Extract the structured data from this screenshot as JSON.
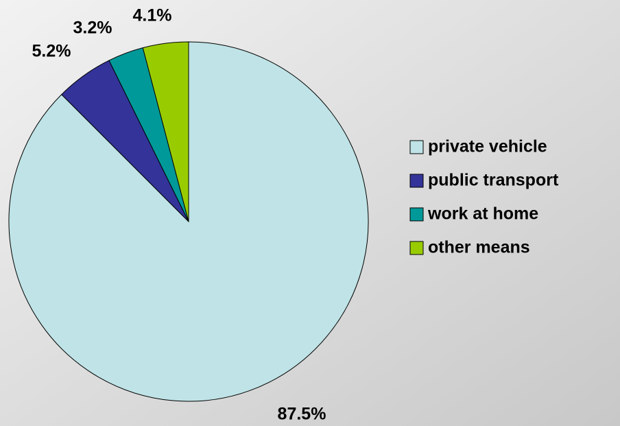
{
  "chart_data": {
    "type": "pie",
    "categories": [
      "private vehicle",
      "public transport",
      "work at home",
      "other means"
    ],
    "values": [
      87.5,
      5.2,
      3.2,
      4.1
    ],
    "value_labels": [
      "87.5%",
      "5.2%",
      "3.2%",
      "4.1%"
    ],
    "colors": [
      "#bfe3e6",
      "#333399",
      "#009999",
      "#99cc00"
    ],
    "legend": "right"
  }
}
